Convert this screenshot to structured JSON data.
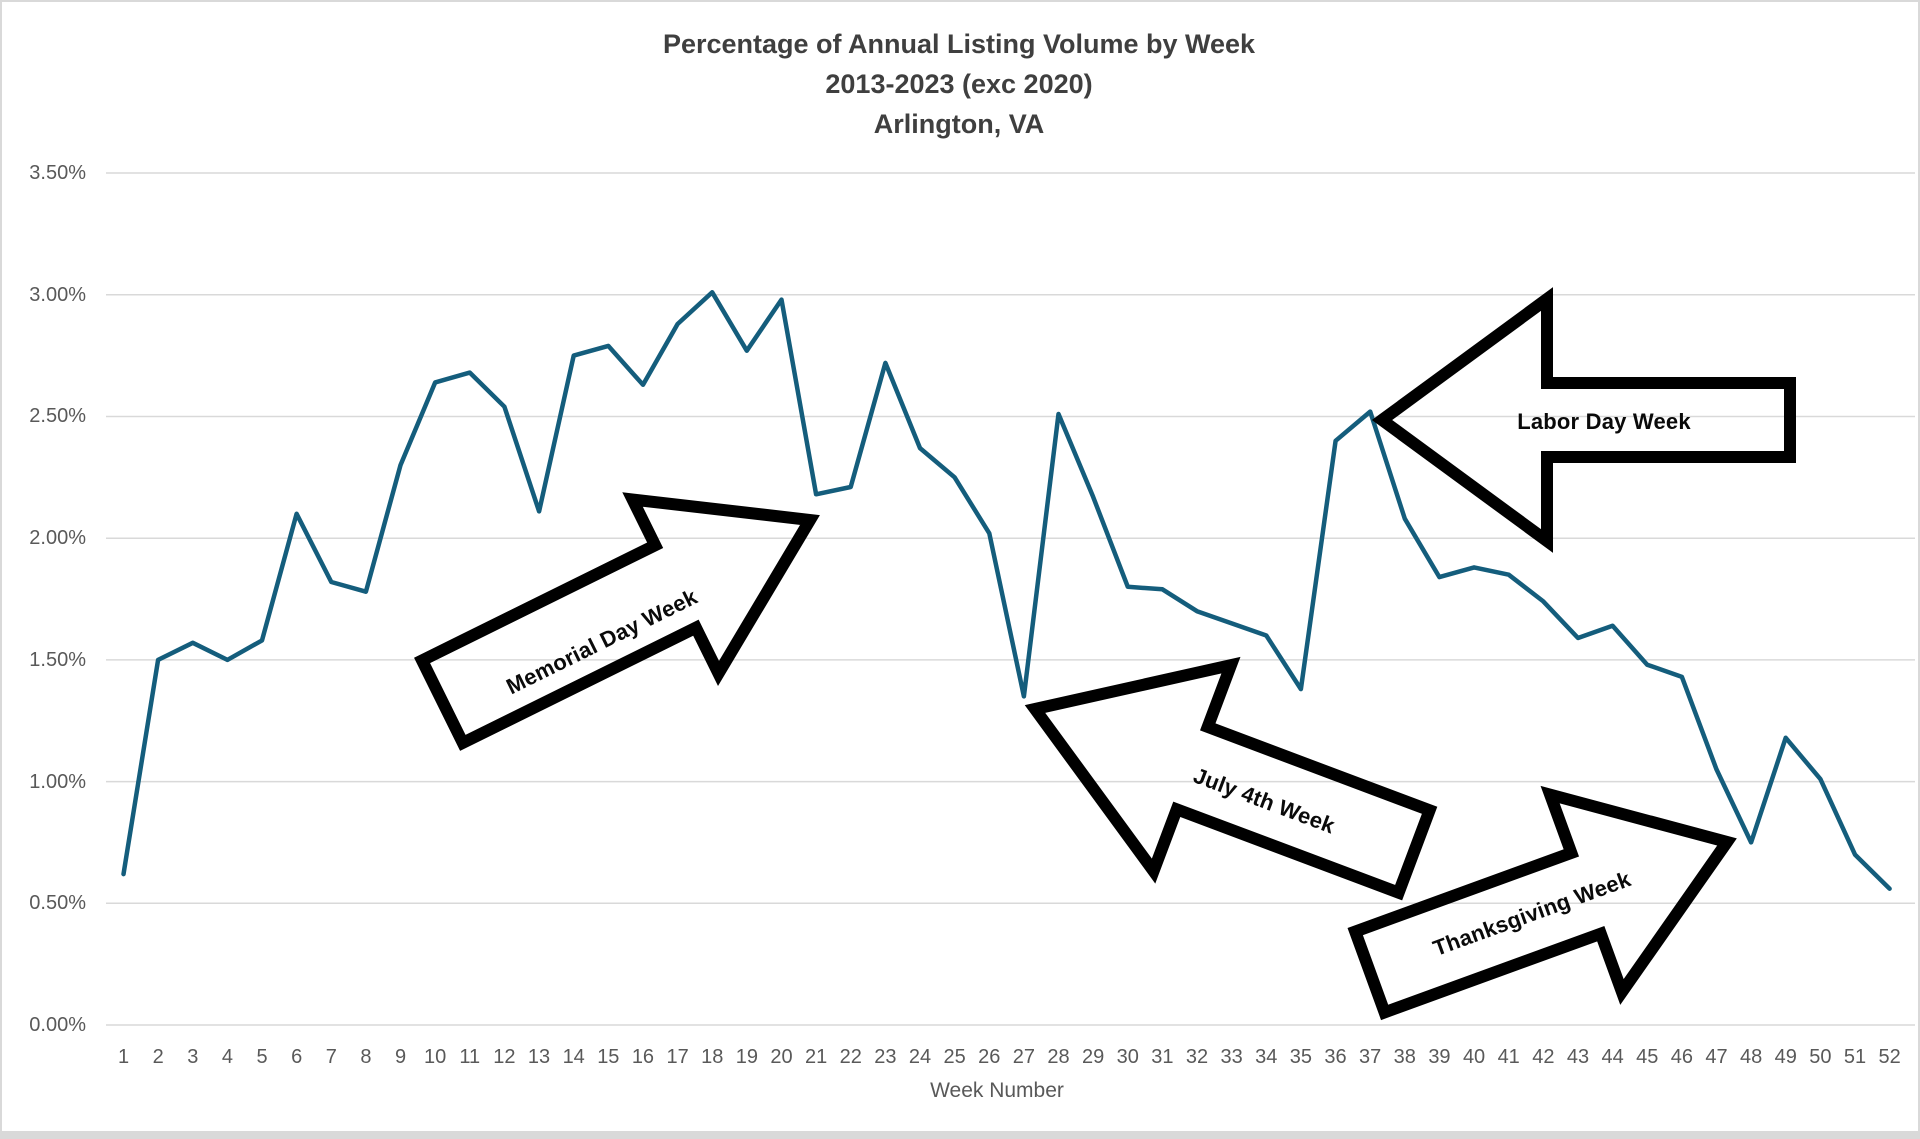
{
  "title": {
    "line1": "Percentage of Annual Listing Volume by Week",
    "line2": "2013-2023 (exc 2020)",
    "line3": "Arlington, VA"
  },
  "axes": {
    "x_title": "Week Number",
    "y_tick_labels": [
      "3.50%",
      "3.00%",
      "2.50%",
      "2.00%",
      "1.50%",
      "1.00%",
      "0.50%",
      "0.00%"
    ]
  },
  "annotations": {
    "memorial": "Memorial Day Week",
    "labor": "Labor Day Week",
    "july4": "July 4th Week",
    "thanksgiving": "Thanksgiving Week"
  },
  "colors": {
    "line": "#145d7c",
    "gridline": "#d9d9d9",
    "title_text": "#3f3f3f",
    "tick_text": "#595959",
    "arrow_outline": "#000000"
  },
  "chart_data": {
    "type": "line",
    "title": "Percentage of Annual Listing Volume by Week — 2013-2023 (exc 2020) — Arlington, VA",
    "xlabel": "Week Number",
    "ylabel": "",
    "ylim": [
      0,
      3.5
    ],
    "y_ticks": [
      0.0,
      0.5,
      1.0,
      1.5,
      2.0,
      2.5,
      3.0,
      3.5
    ],
    "y_tick_format": "percent",
    "grid": true,
    "legend": false,
    "x": [
      1,
      2,
      3,
      4,
      5,
      6,
      7,
      8,
      9,
      10,
      11,
      12,
      13,
      14,
      15,
      16,
      17,
      18,
      19,
      20,
      21,
      22,
      23,
      24,
      25,
      26,
      27,
      28,
      29,
      30,
      31,
      32,
      33,
      34,
      35,
      36,
      37,
      38,
      39,
      40,
      41,
      42,
      43,
      44,
      45,
      46,
      47,
      48,
      49,
      50,
      51,
      52
    ],
    "values": [
      0.62,
      1.5,
      1.57,
      1.5,
      1.58,
      2.1,
      1.82,
      1.78,
      2.3,
      2.64,
      2.68,
      2.54,
      2.11,
      2.75,
      2.79,
      2.63,
      2.88,
      3.01,
      2.77,
      2.98,
      2.18,
      2.21,
      2.72,
      2.37,
      2.25,
      2.02,
      1.35,
      2.51,
      2.17,
      1.8,
      1.79,
      1.7,
      1.65,
      1.6,
      1.38,
      2.4,
      2.52,
      2.08,
      1.84,
      1.88,
      1.85,
      1.74,
      1.59,
      1.64,
      1.48,
      1.43,
      1.05,
      0.75,
      1.18,
      1.01,
      0.7,
      0.56
    ],
    "annotations": [
      {
        "label": "Memorial Day Week",
        "points_at_week": 21,
        "arrow_direction": "up-right"
      },
      {
        "label": "July 4th Week",
        "points_at_week": 27,
        "arrow_direction": "up-left"
      },
      {
        "label": "Labor Day Week",
        "points_at_week": 37,
        "arrow_direction": "left"
      },
      {
        "label": "Thanksgiving Week",
        "points_at_week": 48,
        "arrow_direction": "up-right"
      }
    ]
  }
}
